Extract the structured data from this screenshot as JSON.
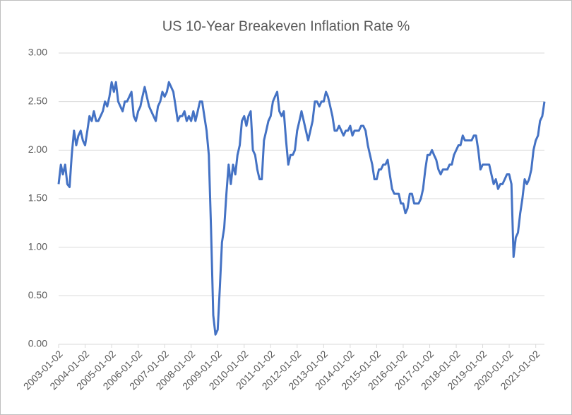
{
  "chart_data": {
    "type": "line",
    "title": "US 10-Year Breakeven Inflation Rate %",
    "x": [
      "2003-01-02",
      "2003-02-02",
      "2003-03-02",
      "2003-04-02",
      "2003-05-02",
      "2003-06-02",
      "2003-07-02",
      "2003-08-02",
      "2003-09-02",
      "2003-10-02",
      "2003-11-02",
      "2003-12-02",
      "2004-01-02",
      "2004-02-02",
      "2004-03-02",
      "2004-04-02",
      "2004-05-02",
      "2004-06-02",
      "2004-07-02",
      "2004-08-02",
      "2004-09-02",
      "2004-10-02",
      "2004-11-02",
      "2004-12-02",
      "2005-01-02",
      "2005-02-02",
      "2005-03-02",
      "2005-04-02",
      "2005-05-02",
      "2005-06-02",
      "2005-07-02",
      "2005-08-02",
      "2005-09-02",
      "2005-10-02",
      "2005-11-02",
      "2005-12-02",
      "2006-01-02",
      "2006-02-02",
      "2006-03-02",
      "2006-04-02",
      "2006-05-02",
      "2006-06-02",
      "2006-07-02",
      "2006-08-02",
      "2006-09-02",
      "2006-10-02",
      "2006-11-02",
      "2006-12-02",
      "2007-01-02",
      "2007-02-02",
      "2007-03-02",
      "2007-04-02",
      "2007-05-02",
      "2007-06-02",
      "2007-07-02",
      "2007-08-02",
      "2007-09-02",
      "2007-10-02",
      "2007-11-02",
      "2007-12-02",
      "2008-01-02",
      "2008-02-02",
      "2008-03-02",
      "2008-04-02",
      "2008-05-02",
      "2008-06-02",
      "2008-07-02",
      "2008-08-02",
      "2008-09-02",
      "2008-10-02",
      "2008-11-02",
      "2008-12-02",
      "2009-01-02",
      "2009-02-02",
      "2009-03-02",
      "2009-04-02",
      "2009-05-02",
      "2009-06-02",
      "2009-07-02",
      "2009-08-02",
      "2009-09-02",
      "2009-10-02",
      "2009-11-02",
      "2009-12-02",
      "2010-01-02",
      "2010-02-02",
      "2010-03-02",
      "2010-04-02",
      "2010-05-02",
      "2010-06-02",
      "2010-07-02",
      "2010-08-02",
      "2010-09-02",
      "2010-10-02",
      "2010-11-02",
      "2010-12-02",
      "2011-01-02",
      "2011-02-02",
      "2011-03-02",
      "2011-04-02",
      "2011-05-02",
      "2011-06-02",
      "2011-07-02",
      "2011-08-02",
      "2011-09-02",
      "2011-10-02",
      "2011-11-02",
      "2011-12-02",
      "2012-01-02",
      "2012-02-02",
      "2012-03-02",
      "2012-04-02",
      "2012-05-02",
      "2012-06-02",
      "2012-07-02",
      "2012-08-02",
      "2012-09-02",
      "2012-10-02",
      "2012-11-02",
      "2012-12-02",
      "2013-01-02",
      "2013-02-02",
      "2013-03-02",
      "2013-04-02",
      "2013-05-02",
      "2013-06-02",
      "2013-07-02",
      "2013-08-02",
      "2013-09-02",
      "2013-10-02",
      "2013-11-02",
      "2013-12-02",
      "2014-01-02",
      "2014-02-02",
      "2014-03-02",
      "2014-04-02",
      "2014-05-02",
      "2014-06-02",
      "2014-07-02",
      "2014-08-02",
      "2014-09-02",
      "2014-10-02",
      "2014-11-02",
      "2014-12-02",
      "2015-01-02",
      "2015-02-02",
      "2015-03-02",
      "2015-04-02",
      "2015-05-02",
      "2015-06-02",
      "2015-07-02",
      "2015-08-02",
      "2015-09-02",
      "2015-10-02",
      "2015-11-02",
      "2015-12-02",
      "2016-01-02",
      "2016-02-02",
      "2016-03-02",
      "2016-04-02",
      "2016-05-02",
      "2016-06-02",
      "2016-07-02",
      "2016-08-02",
      "2016-09-02",
      "2016-10-02",
      "2016-11-02",
      "2016-12-02",
      "2017-01-02",
      "2017-02-02",
      "2017-03-02",
      "2017-04-02",
      "2017-05-02",
      "2017-06-02",
      "2017-07-02",
      "2017-08-02",
      "2017-09-02",
      "2017-10-02",
      "2017-11-02",
      "2017-12-02",
      "2018-01-02",
      "2018-02-02",
      "2018-03-02",
      "2018-04-02",
      "2018-05-02",
      "2018-06-02",
      "2018-07-02",
      "2018-08-02",
      "2018-09-02",
      "2018-10-02",
      "2018-11-02",
      "2018-12-02",
      "2019-01-02",
      "2019-02-02",
      "2019-03-02",
      "2019-04-02",
      "2019-05-02",
      "2019-06-02",
      "2019-07-02",
      "2019-08-02",
      "2019-09-02",
      "2019-10-02",
      "2019-11-02",
      "2019-12-02",
      "2020-01-02",
      "2020-02-02",
      "2020-03-02",
      "2020-04-02",
      "2020-05-02",
      "2020-06-02",
      "2020-07-02",
      "2020-08-02",
      "2020-09-02",
      "2020-10-02",
      "2020-11-02",
      "2020-12-02",
      "2021-01-02",
      "2021-02-02",
      "2021-03-02",
      "2021-04-02",
      "2021-05-02"
    ],
    "series": [
      {
        "color": "#4472c4",
        "values": [
          1.65,
          1.85,
          1.75,
          1.85,
          1.65,
          1.62,
          1.95,
          2.2,
          2.05,
          2.15,
          2.2,
          2.1,
          2.05,
          2.2,
          2.35,
          2.3,
          2.4,
          2.3,
          2.3,
          2.35,
          2.4,
          2.5,
          2.45,
          2.55,
          2.7,
          2.6,
          2.7,
          2.5,
          2.45,
          2.4,
          2.5,
          2.5,
          2.55,
          2.6,
          2.35,
          2.3,
          2.4,
          2.45,
          2.55,
          2.65,
          2.55,
          2.45,
          2.4,
          2.35,
          2.3,
          2.45,
          2.5,
          2.6,
          2.55,
          2.6,
          2.7,
          2.65,
          2.6,
          2.45,
          2.3,
          2.35,
          2.35,
          2.4,
          2.3,
          2.35,
          2.3,
          2.4,
          2.3,
          2.4,
          2.5,
          2.5,
          2.35,
          2.2,
          1.95,
          1.2,
          0.3,
          0.1,
          0.15,
          0.6,
          1.05,
          1.2,
          1.55,
          1.85,
          1.65,
          1.85,
          1.75,
          1.95,
          2.05,
          2.3,
          2.35,
          2.25,
          2.35,
          2.4,
          2.0,
          1.95,
          1.8,
          1.7,
          1.7,
          2.1,
          2.2,
          2.3,
          2.35,
          2.5,
          2.55,
          2.6,
          2.4,
          2.35,
          2.4,
          2.1,
          1.85,
          1.95,
          1.95,
          2.0,
          2.2,
          2.3,
          2.4,
          2.3,
          2.2,
          2.1,
          2.2,
          2.3,
          2.5,
          2.5,
          2.45,
          2.5,
          2.5,
          2.6,
          2.55,
          2.45,
          2.35,
          2.2,
          2.2,
          2.25,
          2.2,
          2.15,
          2.2,
          2.2,
          2.25,
          2.15,
          2.2,
          2.2,
          2.2,
          2.25,
          2.25,
          2.2,
          2.05,
          1.95,
          1.85,
          1.7,
          1.7,
          1.8,
          1.8,
          1.85,
          1.85,
          1.9,
          1.75,
          1.6,
          1.55,
          1.55,
          1.55,
          1.45,
          1.45,
          1.35,
          1.4,
          1.55,
          1.55,
          1.45,
          1.45,
          1.45,
          1.5,
          1.6,
          1.8,
          1.95,
          1.95,
          2.0,
          1.95,
          1.9,
          1.8,
          1.75,
          1.8,
          1.8,
          1.8,
          1.85,
          1.85,
          1.95,
          2.0,
          2.05,
          2.05,
          2.15,
          2.1,
          2.1,
          2.1,
          2.1,
          2.15,
          2.15,
          2.0,
          1.8,
          1.85,
          1.85,
          1.85,
          1.85,
          1.75,
          1.65,
          1.7,
          1.6,
          1.65,
          1.65,
          1.7,
          1.75,
          1.75,
          1.65,
          0.9,
          1.1,
          1.15,
          1.35,
          1.5,
          1.7,
          1.65,
          1.7,
          1.8,
          2.0,
          2.1,
          2.15,
          2.3,
          2.35,
          2.5
        ]
      }
    ],
    "xlim": [
      "2003-01-02",
      "2021-05-02"
    ],
    "xticks": [
      "2003-01-02",
      "2004-01-02",
      "2005-01-02",
      "2006-01-02",
      "2007-01-02",
      "2008-01-02",
      "2009-01-02",
      "2010-01-02",
      "2011-01-02",
      "2012-01-02",
      "2013-01-02",
      "2014-01-02",
      "2015-01-02",
      "2016-01-02",
      "2017-01-02",
      "2018-01-02",
      "2019-01-02",
      "2020-01-02",
      "2021-01-02"
    ],
    "ylim": [
      0,
      3
    ],
    "yticks": [
      {
        "value": 0,
        "label": "0.00"
      },
      {
        "value": 0.5,
        "label": "0.50"
      },
      {
        "value": 1,
        "label": "1.00"
      },
      {
        "value": 1.5,
        "label": "1.50"
      },
      {
        "value": 2,
        "label": "2.00"
      },
      {
        "value": 2.5,
        "label": "2.50"
      },
      {
        "value": 3,
        "label": "3.00"
      }
    ],
    "grid": true
  }
}
